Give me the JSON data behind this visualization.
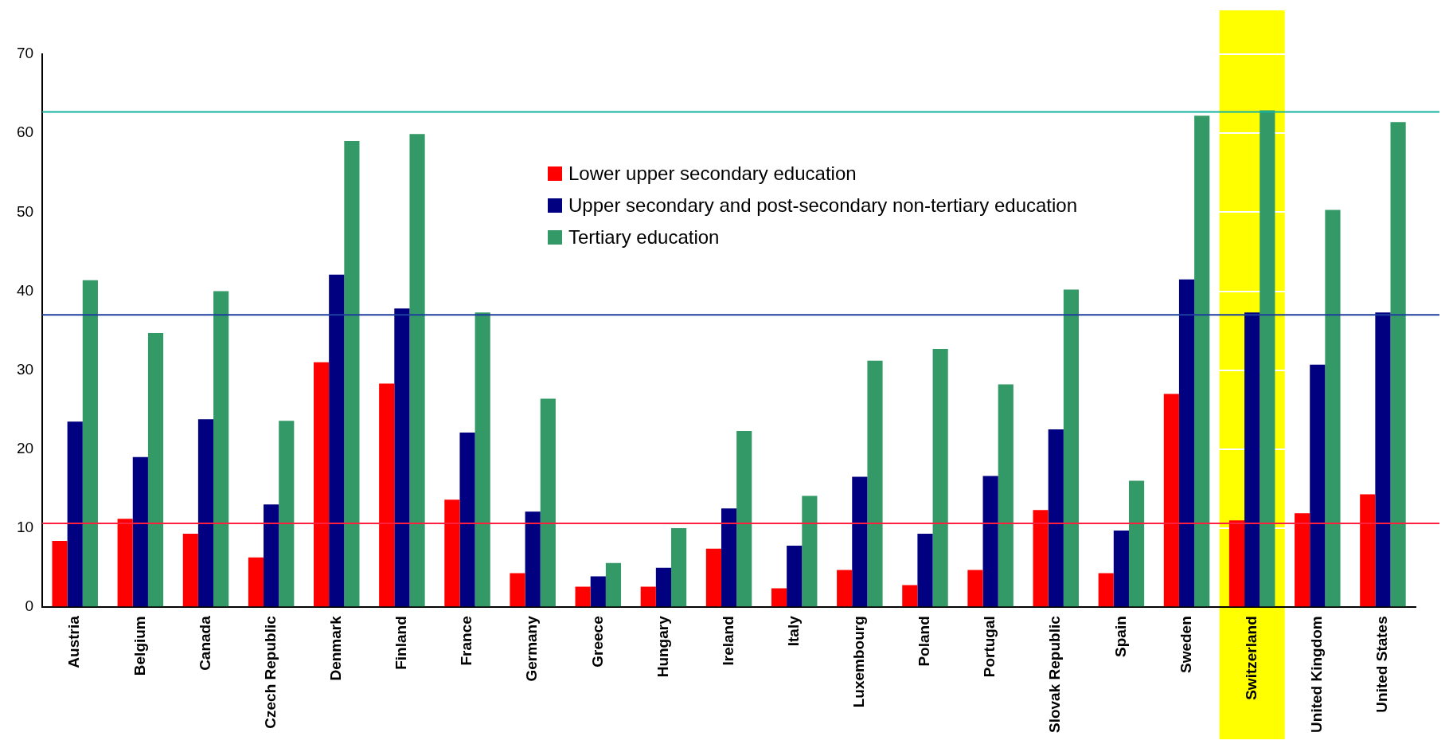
{
  "chart_data": {
    "type": "bar",
    "categories": [
      "Austria",
      "Belgium",
      "Canada",
      "Czech Republic",
      "Denmark",
      "Finland",
      "France",
      "Germany",
      "Greece",
      "Hungary",
      "Ireland",
      "Italy",
      "Luxembourg",
      "Poland",
      "Portugal",
      "Slovak Republic",
      "Spain",
      "Sweden",
      "Switzerland",
      "United Kingdom",
      "United States"
    ],
    "series": [
      {
        "name": "Lower upper secondary education",
        "color": "#ff0000",
        "values": [
          8.4,
          11.2,
          9.3,
          6.3,
          31.0,
          28.3,
          13.6,
          4.3,
          2.6,
          2.6,
          7.4,
          2.4,
          4.7,
          2.8,
          4.7,
          12.3,
          4.3,
          27.0,
          11.0,
          11.9,
          14.3
        ]
      },
      {
        "name": "Upper secondary and post-secondary non-tertiary education",
        "color": "#000080",
        "values": [
          23.5,
          19.0,
          23.8,
          13.0,
          42.1,
          37.8,
          22.1,
          12.1,
          3.9,
          5.0,
          12.5,
          7.8,
          16.5,
          9.3,
          16.6,
          22.5,
          9.7,
          41.5,
          37.3,
          30.7,
          37.3
        ]
      },
      {
        "name": "Tertiary education",
        "color": "#339966",
        "values": [
          41.4,
          34.7,
          40.0,
          23.6,
          59.0,
          59.9,
          37.3,
          26.4,
          5.6,
          10.0,
          22.3,
          14.1,
          31.2,
          32.7,
          28.2,
          40.2,
          16.0,
          62.2,
          62.9,
          50.3,
          61.4
        ]
      }
    ],
    "ylim": [
      0,
      70
    ],
    "yticks": [
      0,
      10,
      20,
      30,
      40,
      50,
      60,
      70
    ],
    "grid": "y",
    "legend": "top",
    "ref_lines": [
      {
        "axis": "y",
        "value": 62.7,
        "color": "#14b4a0"
      },
      {
        "axis": "y",
        "value": 37.0,
        "color": "#1f3f9f"
      },
      {
        "axis": "y",
        "value": 10.6,
        "color": "#ff2040"
      }
    ],
    "bands": [
      {
        "axis": "x",
        "from": "Switzerland",
        "to": "Switzerland",
        "color": "#ffff00"
      }
    ]
  }
}
